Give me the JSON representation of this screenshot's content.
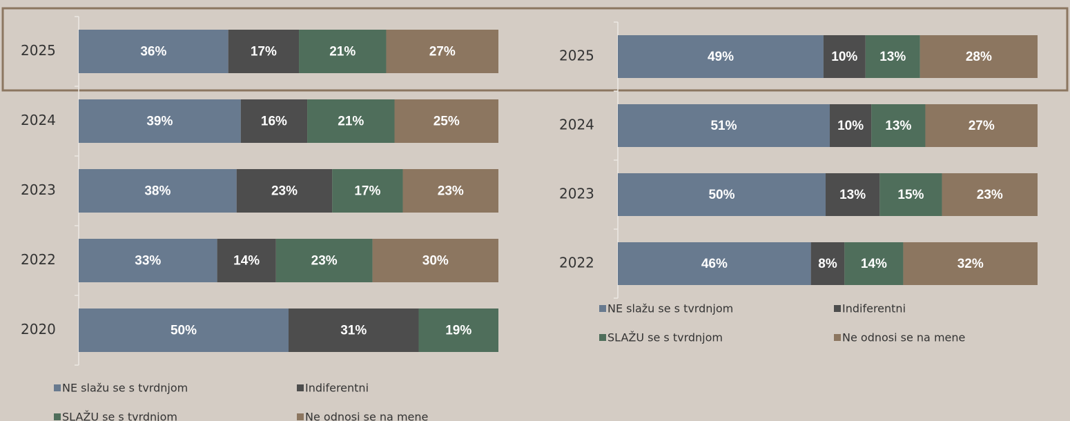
{
  "chart_data": [
    {
      "type": "bar",
      "categories": [
        "2025",
        "2024",
        "2023",
        "2022",
        "2020"
      ],
      "series": [
        {
          "name": "NE slažu se s tvrdnjom",
          "color": "#687a8f",
          "values": [
            36,
            39,
            38,
            33,
            50
          ],
          "value_labels": [
            "36%",
            "39%",
            "38%",
            "33%",
            "50%"
          ]
        },
        {
          "name": "Indiferentni",
          "color": "#4d4d4d",
          "values": [
            17,
            16,
            23,
            14,
            31
          ],
          "value_labels": [
            "17%",
            "16%",
            "23%",
            "14%",
            "31%"
          ]
        },
        {
          "name": "SLAŽU se s tvrdnjom",
          "color": "#4f6e5b",
          "values": [
            21,
            21,
            17,
            23,
            19
          ],
          "value_labels": [
            "21%",
            "21%",
            "17%",
            "23%",
            "19%"
          ]
        },
        {
          "name": "Ne odnosi se na mene",
          "color": "#8c7660",
          "values": [
            27,
            25,
            23,
            30,
            null
          ],
          "value_labels": [
            "27%",
            "25%",
            "23%",
            "30%",
            null
          ]
        }
      ],
      "legend": "bottom"
    },
    {
      "type": "bar",
      "categories": [
        "2025",
        "2024",
        "2023",
        "2022"
      ],
      "series": [
        {
          "name": "NE slažu se s tvrdnjom",
          "color": "#687a8f",
          "values": [
            49,
            51,
            50,
            46
          ],
          "value_labels": [
            "49%",
            "51%",
            "50%",
            "46%"
          ]
        },
        {
          "name": "Indiferentni",
          "color": "#4d4d4d",
          "values": [
            10,
            10,
            13,
            8
          ],
          "value_labels": [
            "10%",
            "10%",
            "13%",
            "8%"
          ]
        },
        {
          "name": "SLAŽU se s tvrdnjom",
          "color": "#4f6e5b",
          "values": [
            13,
            13,
            15,
            14
          ],
          "value_labels": [
            "13%",
            "13%",
            "15%",
            "14%"
          ]
        },
        {
          "name": "Ne odnosi se na mene",
          "color": "#8c7660",
          "values": [
            28,
            27,
            23,
            32
          ],
          "value_labels": [
            "28%",
            "27%",
            "23%",
            "32%"
          ]
        }
      ],
      "legend": "bottom"
    }
  ]
}
